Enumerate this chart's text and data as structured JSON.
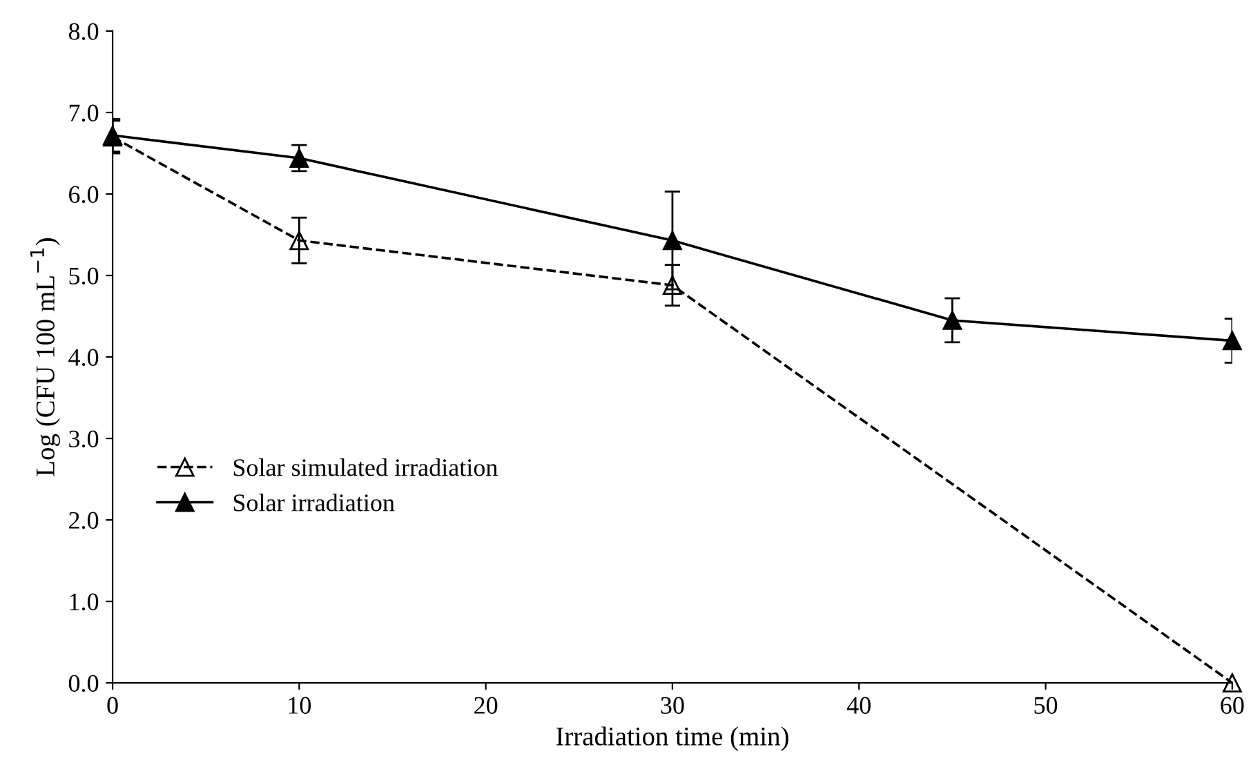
{
  "chart_data": {
    "type": "line",
    "xlabel": "Irradiation time (min)",
    "ylabel": "Log (CFU 100 mL$^{−1}$)",
    "xlim": [
      0,
      60
    ],
    "xticks": [
      0,
      10,
      20,
      30,
      40,
      50,
      60
    ],
    "ylim": [
      0,
      8
    ],
    "yticks": [
      {
        "value": 0,
        "label": "0.0"
      },
      {
        "value": 1,
        "label": "1.0"
      },
      {
        "value": 2,
        "label": "2.0"
      },
      {
        "value": 3,
        "label": "3.0"
      },
      {
        "value": 4,
        "label": "4.0"
      },
      {
        "value": 5,
        "label": "5.0"
      },
      {
        "value": 6,
        "label": "6.0"
      },
      {
        "value": 7,
        "label": "7.0"
      },
      {
        "value": 8,
        "label": "8.0"
      }
    ],
    "grid": false,
    "legend": "left",
    "series": [
      {
        "name": "Solar simulated irradiation",
        "color": "#000000",
        "x": [
          0,
          10,
          30,
          60
        ],
        "values": [
          6.7,
          5.43,
          4.88,
          0.0
        ],
        "errors": [
          0.2,
          0.28,
          0.25,
          null
        ],
        "line_style": "dashed",
        "marker": "triangle"
      },
      {
        "name": "Solar irradiation",
        "color": "#000000",
        "x": [
          0,
          10,
          30,
          45,
          60
        ],
        "values": [
          6.72,
          6.44,
          5.43,
          4.45,
          4.2
        ],
        "errors": [
          0.2,
          0.16,
          0.6,
          0.27,
          0.27
        ],
        "line_style": "solid",
        "marker": "triangle"
      }
    ]
  }
}
